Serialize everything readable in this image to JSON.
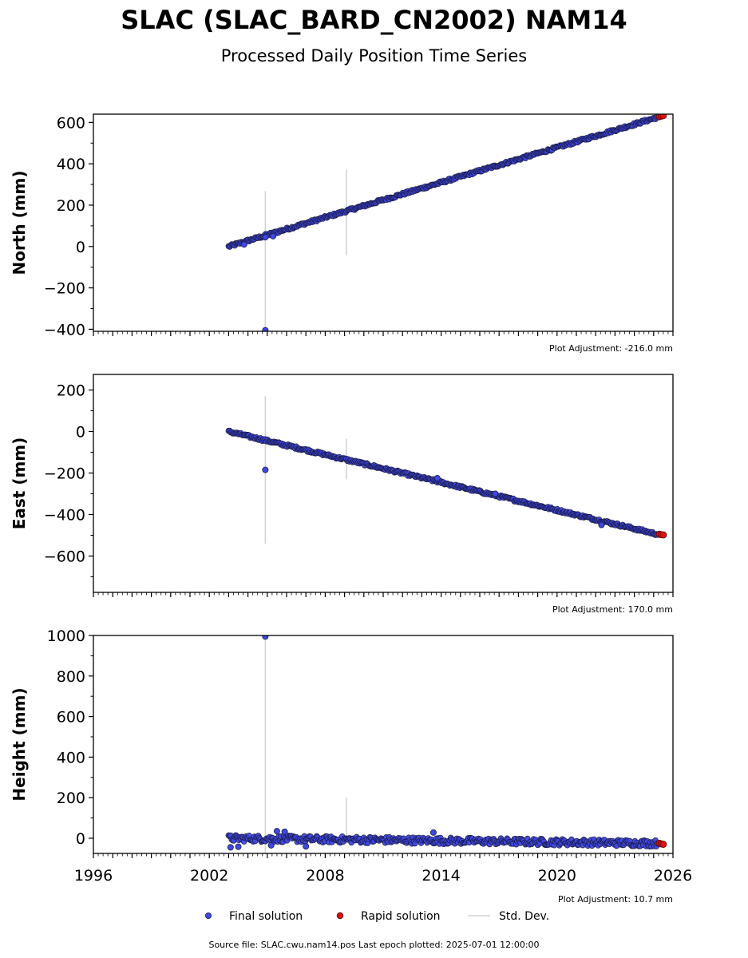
{
  "figure": {
    "title": "SLAC (SLAC_BARD_CN2002) NAM14",
    "subtitle": "Processed Daily Position Time Series",
    "footer": "Source file: SLAC.cwu.nam14.pos  Last epoch plotted: 2025-07-01 12:00:00"
  },
  "colors": {
    "final": "#3f48e0",
    "final_edge": "#1b1b4a",
    "rapid": "#e01010",
    "stddev": "#d3d3d3"
  },
  "chart_data": [
    {
      "type": "scatter",
      "ylabel": "North (mm)",
      "xlim": [
        1996,
        2026
      ],
      "ylim": [
        -410,
        640
      ],
      "yticks": [
        -400,
        -200,
        0,
        200,
        400,
        600
      ],
      "adjustment": "Plot Adjustment: -216.0 mm",
      "series": [
        {
          "name": "Final solution",
          "trend": {
            "x_start": 2003.0,
            "y_start": 0,
            "x_end": 2025.2,
            "y_end": 625
          }
        },
        {
          "name": "Rapid solution",
          "x": [
            2025.3,
            2025.4,
            2025.5
          ],
          "y": [
            628,
            631,
            633
          ]
        }
      ],
      "outliers": [
        [
          2004.9,
          -405
        ],
        [
          2004.9,
          45
        ],
        [
          2005.3,
          50
        ],
        [
          2003.8,
          10
        ]
      ],
      "std_dev_bars": [
        [
          2004.9,
          -410,
          268
        ],
        [
          2009.1,
          -42,
          372
        ]
      ]
    },
    {
      "type": "scatter",
      "ylabel": "East (mm)",
      "xlim": [
        1996,
        2026
      ],
      "ylim": [
        -775,
        275
      ],
      "yticks": [
        -600,
        -400,
        -200,
        0,
        200
      ],
      "adjustment": "Plot Adjustment: 170.0 mm",
      "series": [
        {
          "name": "Final solution",
          "trend": {
            "x_start": 2003.0,
            "y_start": 0,
            "x_end": 2025.2,
            "y_end": -495
          }
        },
        {
          "name": "Rapid solution",
          "x": [
            2025.3,
            2025.4,
            2025.5
          ],
          "y": [
            -495,
            -497,
            -498
          ]
        }
      ],
      "outliers": [
        [
          2004.9,
          -185
        ],
        [
          2013.8,
          -225
        ],
        [
          2016.8,
          -300
        ],
        [
          2022.3,
          -450
        ]
      ],
      "std_dev_bars": [
        [
          2004.9,
          -540,
          170
        ],
        [
          2009.1,
          -230,
          -35
        ]
      ]
    },
    {
      "type": "scatter",
      "ylabel": "Height (mm)",
      "xlabel": "",
      "xlim": [
        1996,
        2026
      ],
      "ylim": [
        -75,
        1000
      ],
      "yticks": [
        0,
        200,
        400,
        600,
        800,
        1000
      ],
      "xticks": [
        1996,
        2002,
        2008,
        2014,
        2020,
        2026
      ],
      "adjustment": "Plot Adjustment: 10.7 mm",
      "series": [
        {
          "name": "Final solution",
          "trend": {
            "x_start": 2003.0,
            "y_start": 0,
            "x_end": 2025.2,
            "y_end": -25
          }
        },
        {
          "name": "Rapid solution",
          "x": [
            2025.3,
            2025.4,
            2025.5
          ],
          "y": [
            -25,
            -28,
            -30
          ]
        }
      ],
      "outliers": [
        [
          2004.9,
          995
        ],
        [
          2005.5,
          35
        ],
        [
          2005.9,
          32
        ],
        [
          2013.6,
          28
        ],
        [
          2007.0,
          -40
        ],
        [
          2003.1,
          -45
        ],
        [
          2003.5,
          -42
        ],
        [
          2005.2,
          -35
        ]
      ],
      "std_dev_bars": [
        [
          2004.9,
          -75,
          1000
        ],
        [
          2009.1,
          -30,
          200
        ]
      ]
    }
  ],
  "legend": {
    "final_label": "Final solution",
    "rapid_label": "Rapid solution",
    "std_label": "Std. Dev."
  }
}
